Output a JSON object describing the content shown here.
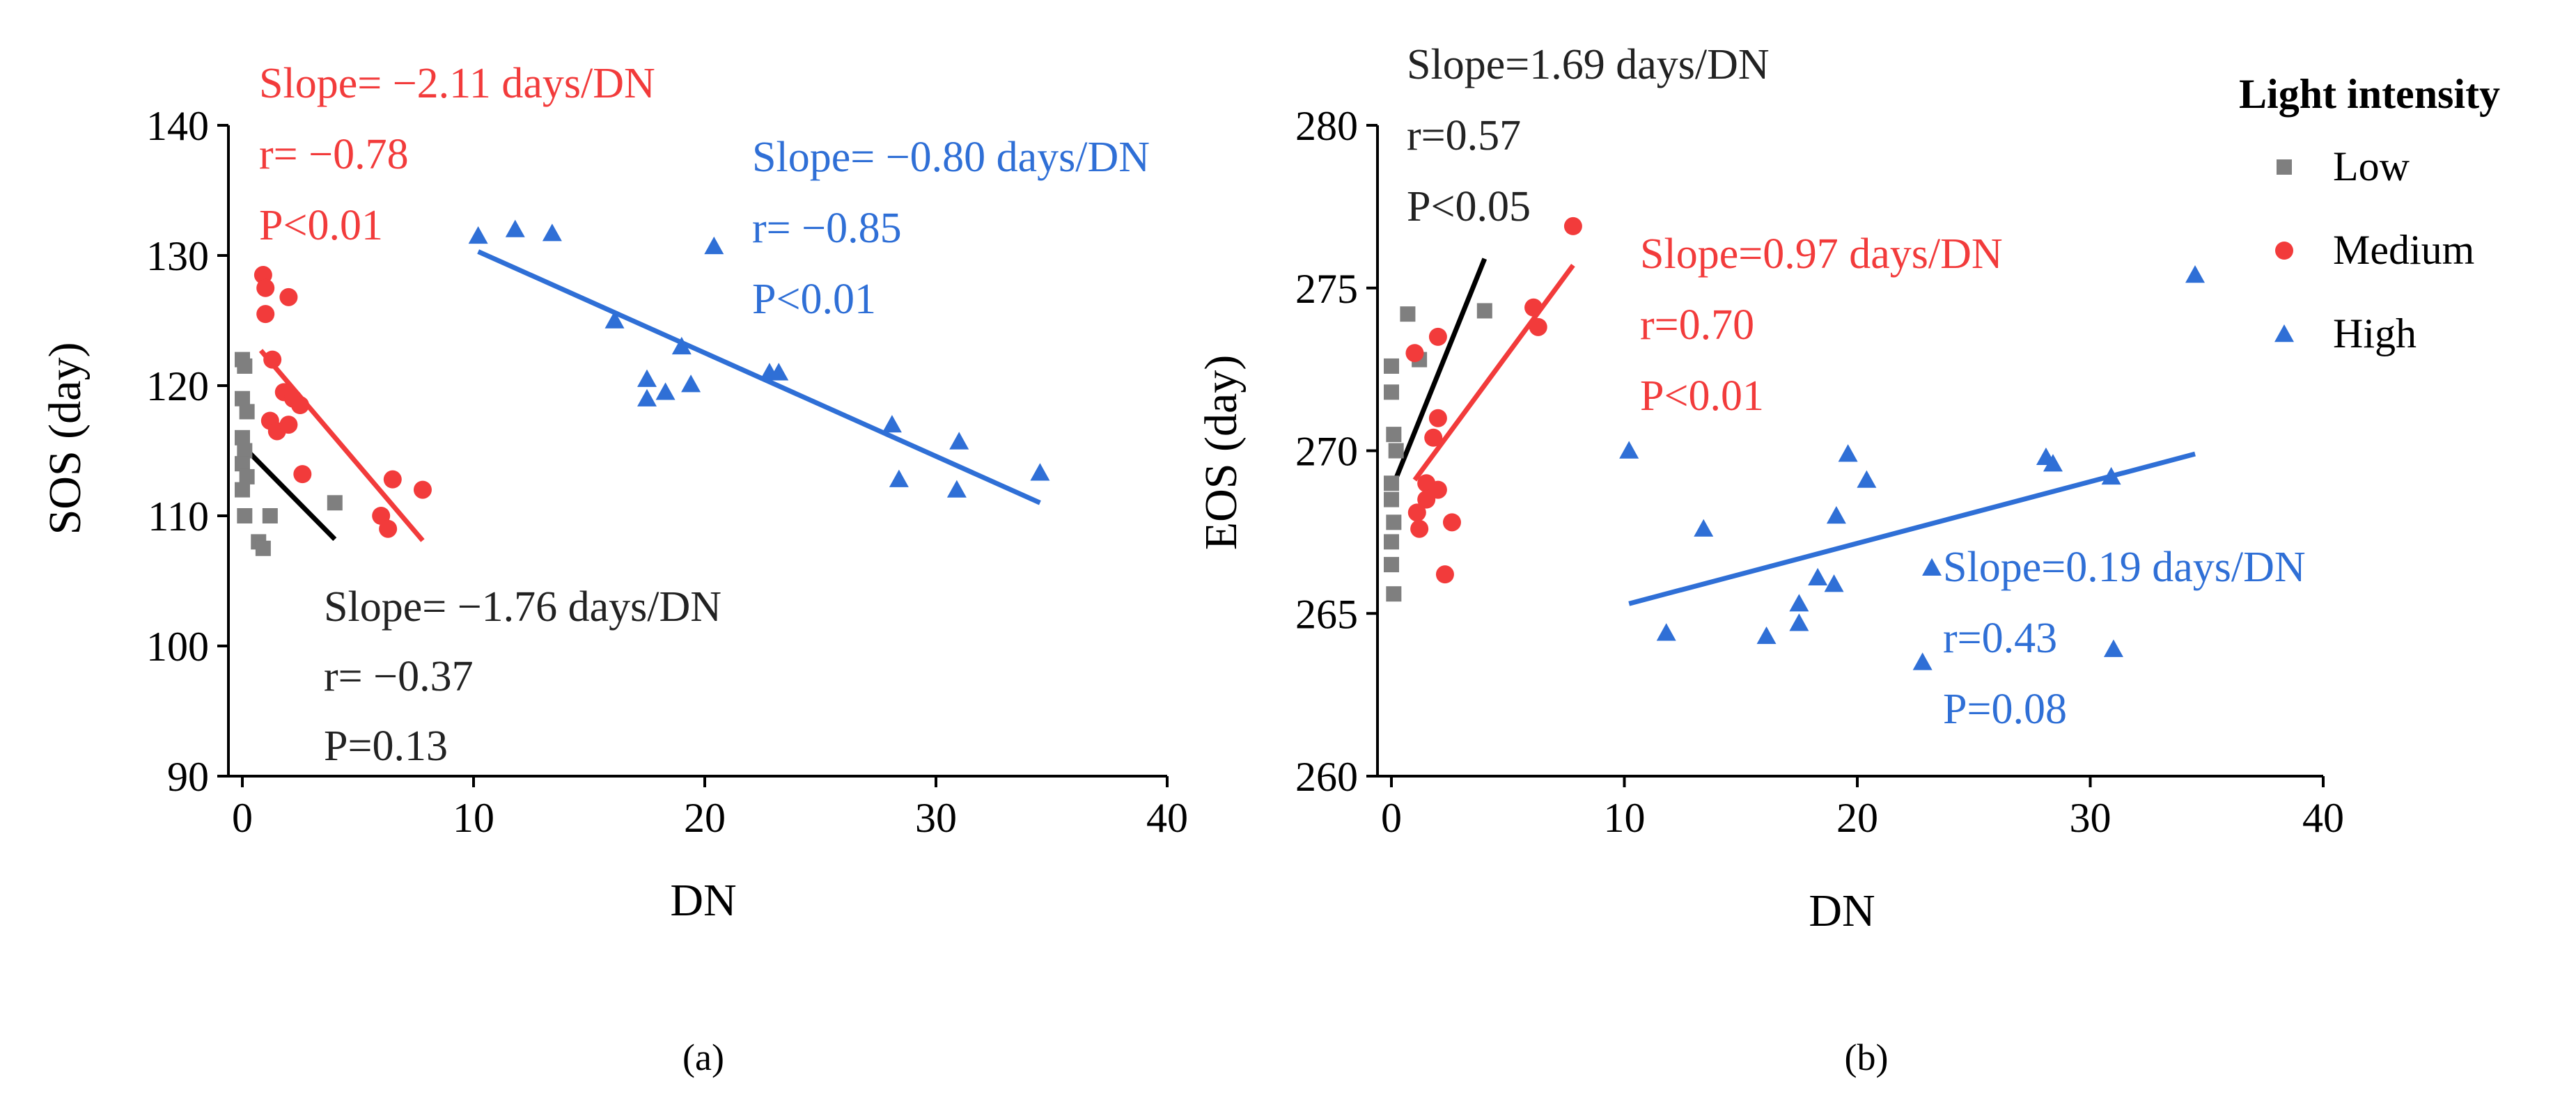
{
  "colors": {
    "low": "#7f7f7f",
    "medium": "#f23b3b",
    "high": "#2f6fd6",
    "axis": "#000000",
    "low_text": "#222222"
  },
  "legend": {
    "title": "Light intensity",
    "items": [
      {
        "key": "low",
        "label": "Low",
        "marker": "square"
      },
      {
        "key": "medium",
        "label": "Medium",
        "marker": "circle"
      },
      {
        "key": "high",
        "label": "High",
        "marker": "triangle"
      }
    ]
  },
  "chart_data": [
    {
      "id": "a",
      "type": "scatter",
      "caption": "(a)",
      "xlabel": "DN",
      "ylabel": "SOS (day)",
      "xlim": [
        0,
        40
      ],
      "ylim": [
        90,
        140
      ],
      "xticks": [
        0,
        10,
        20,
        30,
        40
      ],
      "yticks": [
        90,
        100,
        110,
        120,
        130,
        140
      ],
      "series": [
        {
          "name": "Low",
          "key": "low",
          "marker": "square",
          "points": [
            [
              0,
              122
            ],
            [
              0.1,
              121.5
            ],
            [
              0,
              119
            ],
            [
              0.2,
              118
            ],
            [
              0,
              116
            ],
            [
              0.1,
              115
            ],
            [
              0,
              114
            ],
            [
              0.2,
              113
            ],
            [
              0,
              112
            ],
            [
              0.1,
              110
            ],
            [
              0.7,
              108
            ],
            [
              0.9,
              107.5
            ],
            [
              1.2,
              110
            ],
            [
              4,
              111
            ]
          ],
          "fit": {
            "x": [
              0,
              4
            ],
            "y": [
              115.4,
              108.2
            ]
          },
          "annotation": [
            "Slope= −1.76 days/DN",
            "r= −0.37",
            "P=0.13"
          ]
        },
        {
          "name": "Medium",
          "key": "medium",
          "marker": "circle",
          "points": [
            [
              0.9,
              128.5
            ],
            [
              1,
              127.5
            ],
            [
              1,
              125.5
            ],
            [
              2,
              126.8
            ],
            [
              1.3,
              122
            ],
            [
              1.8,
              119.5
            ],
            [
              2.2,
              119
            ],
            [
              2.5,
              118.5
            ],
            [
              1.2,
              117.3
            ],
            [
              1.5,
              116.5
            ],
            [
              2,
              117
            ],
            [
              2.6,
              113.2
            ],
            [
              6,
              110
            ],
            [
              6.3,
              109
            ],
            [
              6.5,
              112.8
            ],
            [
              7.8,
              112
            ]
          ],
          "fit": {
            "x": [
              0.8,
              7.8
            ],
            "y": [
              122.7,
              108.1
            ]
          },
          "annotation": [
            "Slope= −2.11 days/DN",
            "r= −0.78",
            "P<0.01"
          ]
        },
        {
          "name": "High",
          "key": "high",
          "marker": "triangle",
          "points": [
            [
              10.2,
              131.5
            ],
            [
              11.8,
              132
            ],
            [
              13.4,
              131.7
            ],
            [
              20.4,
              130.7
            ],
            [
              16.1,
              125
            ],
            [
              17.5,
              120.5
            ],
            [
              17.5,
              119
            ],
            [
              18.3,
              119.5
            ],
            [
              19,
              123
            ],
            [
              19.4,
              120.1
            ],
            [
              22.8,
              121
            ],
            [
              23.2,
              121
            ],
            [
              28.1,
              117
            ],
            [
              28.4,
              112.8
            ],
            [
              30.9,
              112
            ],
            [
              31,
              115.7
            ],
            [
              34.5,
              113.3
            ]
          ],
          "fit": {
            "x": [
              10.2,
              34.5
            ],
            "y": [
              130.3,
              111
            ]
          },
          "annotation": [
            "Slope= −0.80 days/DN",
            "r= −0.85",
            "P<0.01"
          ]
        }
      ]
    },
    {
      "id": "b",
      "type": "scatter",
      "caption": "(b)",
      "xlabel": "DN",
      "ylabel": "EOS (day)",
      "xlim": [
        0,
        40
      ],
      "ylim": [
        260,
        280
      ],
      "xticks": [
        0,
        10,
        20,
        30,
        40
      ],
      "yticks": [
        260,
        265,
        270,
        275,
        280
      ],
      "series": [
        {
          "name": "Low",
          "key": "low",
          "marker": "square",
          "points": [
            [
              0,
              272.6
            ],
            [
              0,
              271.8
            ],
            [
              0.1,
              270.5
            ],
            [
              0.2,
              270
            ],
            [
              0,
              269
            ],
            [
              0,
              268.5
            ],
            [
              0.1,
              267.8
            ],
            [
              0,
              267.2
            ],
            [
              0,
              266.5
            ],
            [
              0.1,
              265.6
            ],
            [
              0.7,
              274.2
            ],
            [
              1.2,
              272.8
            ],
            [
              4,
              274.3
            ]
          ],
          "fit": {
            "x": [
              0,
              4
            ],
            "y": [
              268.8,
              275.9
            ]
          },
          "annotation": [
            "Slope=1.69 days/DN",
            "r=0.57",
            "P<0.05"
          ]
        },
        {
          "name": "Medium",
          "key": "medium",
          "marker": "circle",
          "points": [
            [
              7.8,
              276.9
            ],
            [
              6.1,
              274.4
            ],
            [
              6.3,
              273.8
            ],
            [
              2,
              273.5
            ],
            [
              1,
              273
            ],
            [
              2,
              271
            ],
            [
              1.8,
              270.4
            ],
            [
              1.5,
              269
            ],
            [
              2,
              268.8
            ],
            [
              1.5,
              268.5
            ],
            [
              1.1,
              268.1
            ],
            [
              1.2,
              267.6
            ],
            [
              2.6,
              267.8
            ],
            [
              2.3,
              266.2
            ]
          ],
          "fit": {
            "x": [
              1.0,
              7.8
            ],
            "y": [
              269.1,
              275.7
            ]
          },
          "annotation": [
            "Slope=0.97 days/DN",
            "r=0.70",
            "P<0.01"
          ]
        },
        {
          "name": "High",
          "key": "high",
          "marker": "triangle",
          "points": [
            [
              10.2,
              270
            ],
            [
              11.8,
              264.4
            ],
            [
              13.4,
              267.6
            ],
            [
              16.1,
              264.3
            ],
            [
              17.5,
              265.3
            ],
            [
              17.5,
              264.7
            ],
            [
              18.3,
              266.1
            ],
            [
              19,
              265.9
            ],
            [
              19.1,
              268
            ],
            [
              19.6,
              269.9
            ],
            [
              20.4,
              269.1
            ],
            [
              22.8,
              263.5
            ],
            [
              23.2,
              266.4
            ],
            [
              28.1,
              269.8
            ],
            [
              28.4,
              269.6
            ],
            [
              30.9,
              269.2
            ],
            [
              31,
              263.9
            ],
            [
              34.5,
              275.4
            ]
          ],
          "fit": {
            "x": [
              10.2,
              34.5
            ],
            "y": [
              265.3,
              269.9
            ]
          },
          "annotation": [
            "Slope=0.19 days/DN",
            "r=0.43",
            "P=0.08"
          ]
        }
      ]
    }
  ]
}
